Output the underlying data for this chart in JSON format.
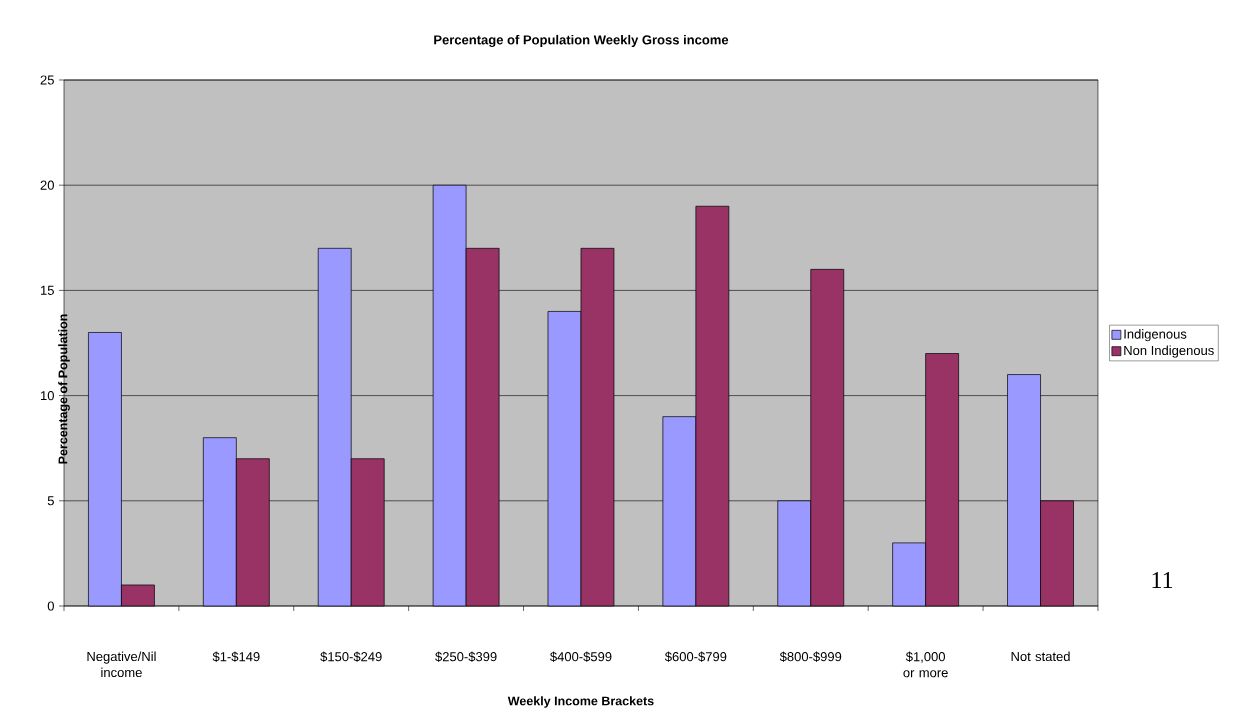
{
  "chart_data": {
    "type": "bar",
    "title": "Percentage of Population Weekly Gross income",
    "xlabel": "Weekly Income Brackets",
    "ylabel": "Percentage of Population",
    "categories": [
      "Negative/Nil income",
      "$1-$149",
      "$150-$249",
      "$250-$399",
      "$400-$599",
      "$600-$799",
      "$800-$999",
      "$1,000 or more",
      "Not stated"
    ],
    "series": [
      {
        "name": "Indigenous",
        "color": "#9999ff",
        "values": [
          13,
          8,
          17,
          20,
          14,
          9,
          5,
          3,
          11
        ]
      },
      {
        "name": "Non Indigenous",
        "color": "#993366",
        "values": [
          1,
          7,
          7,
          17,
          17,
          19,
          16,
          12,
          5
        ]
      }
    ],
    "ylim": [
      0,
      25
    ],
    "yticks": [
      0,
      5,
      10,
      15,
      20,
      25
    ],
    "grid": "y",
    "legend": "right",
    "annotations": [
      "11"
    ]
  }
}
